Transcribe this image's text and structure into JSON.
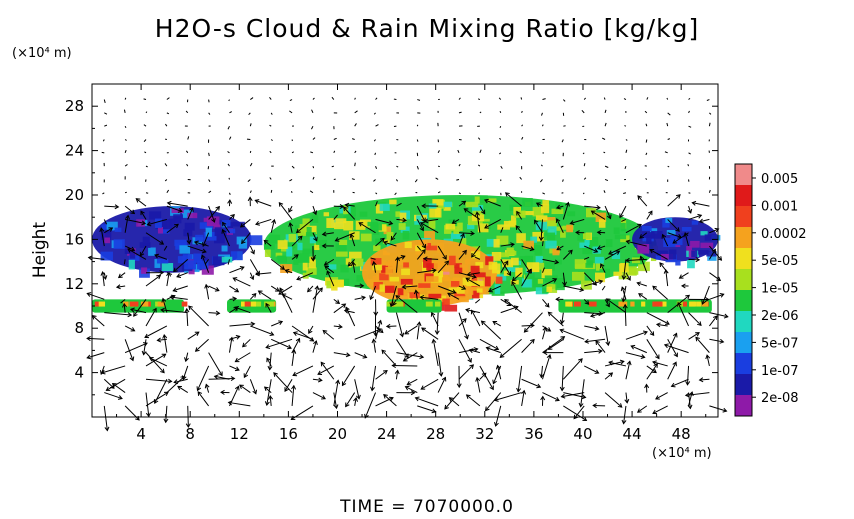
{
  "title": "H2O-s Cloud & Rain Mixing Ratio [kg/kg]",
  "time_label": "TIME  =  7070000.0",
  "colors": {
    "colorbar": [
      "#8e1aa8",
      "#1a1aa8",
      "#1a3ee0",
      "#1aa0f0",
      "#20d8c0",
      "#1ec83c",
      "#a8e01e",
      "#f0e01e",
      "#f5a21e",
      "#f0401e",
      "#e01a1a",
      "#f08a8a"
    ]
  },
  "chart_data": {
    "type": "heatmap",
    "title": "H2O-s Cloud & Rain Mixing Ratio [kg/kg]",
    "xlabel": "",
    "ylabel": "Height",
    "x_unit": "(×10⁴ m)",
    "y_unit": "(×10⁴ m)",
    "xlim": [
      0,
      51
    ],
    "ylim": [
      0,
      30
    ],
    "x_ticks": [
      4,
      8,
      12,
      16,
      20,
      24,
      28,
      32,
      36,
      40,
      44,
      48
    ],
    "y_ticks": [
      4,
      8,
      12,
      16,
      20,
      24,
      28
    ],
    "colorbar_labels": [
      "0.005",
      "0.001",
      "0.0002",
      "5e-05",
      "1e-05",
      "2e-06",
      "5e-07",
      "1e-07",
      "2e-08"
    ],
    "overlay": "wind vectors",
    "regions": [
      {
        "name": "upper-left anvil",
        "x": [
          0,
          13
        ],
        "y": [
          13,
          19
        ],
        "level": "1e-07"
      },
      {
        "name": "main convective cloud",
        "x": [
          14,
          46
        ],
        "y": [
          11,
          20
        ],
        "level": "5e-05"
      },
      {
        "name": "convective core",
        "x": [
          22,
          33
        ],
        "y": [
          10,
          16
        ],
        "level": "0.001"
      },
      {
        "name": "upper-right anvil",
        "x": [
          44,
          51
        ],
        "y": [
          14,
          18
        ],
        "level": "1e-07"
      },
      {
        "name": "thin layer",
        "x": [
          0,
          51
        ],
        "y": [
          9.5,
          10.5
        ],
        "level": "1e-05"
      }
    ]
  }
}
